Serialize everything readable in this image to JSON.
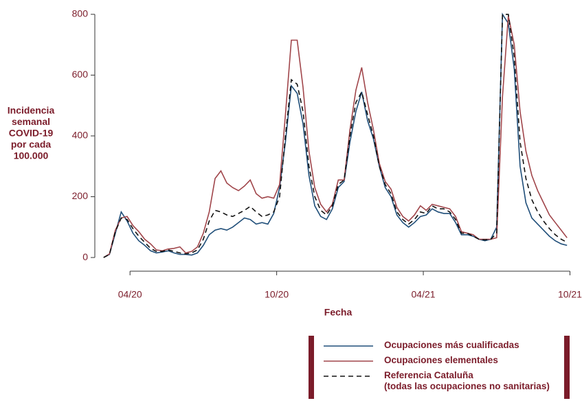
{
  "chart_data": {
    "type": "line",
    "ylabel": [
      "Incidencia",
      "semanal",
      "COVID-19",
      "por cada",
      "100.000"
    ],
    "xlabel": "Fecha",
    "x": [
      2020.16,
      2020.18,
      2020.2,
      2020.22,
      2020.24,
      2020.26,
      2020.28,
      2020.3,
      2020.32,
      2020.34,
      2020.36,
      2020.38,
      2020.4,
      2020.42,
      2020.44,
      2020.46,
      2020.48,
      2020.5,
      2020.52,
      2020.54,
      2020.56,
      2020.58,
      2020.6,
      2020.62,
      2020.64,
      2020.66,
      2020.68,
      2020.7,
      2020.72,
      2020.74,
      2020.76,
      2020.78,
      2020.8,
      2020.82,
      2020.84,
      2020.86,
      2020.88,
      2020.9,
      2020.92,
      2020.94,
      2020.96,
      2020.98,
      2021.0,
      2021.02,
      2021.04,
      2021.06,
      2021.08,
      2021.1,
      2021.12,
      2021.14,
      2021.16,
      2021.18,
      2021.2,
      2021.22,
      2021.24,
      2021.26,
      2021.28,
      2021.3,
      2021.32,
      2021.34,
      2021.36,
      2021.38,
      2021.4,
      2021.42,
      2021.44,
      2021.46,
      2021.48,
      2021.5,
      2021.52,
      2021.54,
      2021.56,
      2021.58,
      2021.6,
      2021.62,
      2021.64,
      2021.66,
      2021.68,
      2021.7,
      2021.72,
      2021.74
    ],
    "series": [
      {
        "name": "Ocupaciones más cualificadas",
        "color": "#1f4e79",
        "line_style": "solid",
        "values": [
          0,
          10,
          80,
          150,
          120,
          80,
          55,
          40,
          22,
          15,
          18,
          22,
          15,
          10,
          10,
          8,
          15,
          40,
          75,
          90,
          95,
          90,
          100,
          115,
          130,
          125,
          110,
          115,
          110,
          145,
          230,
          380,
          565,
          540,
          440,
          270,
          170,
          135,
          125,
          160,
          230,
          250,
          380,
          480,
          545,
          450,
          390,
          300,
          230,
          200,
          140,
          115,
          100,
          115,
          135,
          140,
          160,
          150,
          145,
          145,
          115,
          75,
          75,
          70,
          60,
          55,
          60,
          100,
          800,
          770,
          620,
          300,
          180,
          130,
          110,
          90,
          70,
          55,
          45,
          40
        ]
      },
      {
        "name": "Ocupaciones elementales",
        "color": "#a0454a",
        "line_style": "solid",
        "values": [
          0,
          12,
          90,
          130,
          135,
          105,
          85,
          60,
          45,
          25,
          22,
          28,
          30,
          35,
          15,
          20,
          35,
          80,
          150,
          260,
          285,
          245,
          230,
          220,
          235,
          255,
          210,
          195,
          200,
          195,
          240,
          470,
          715,
          715,
          560,
          350,
          230,
          175,
          150,
          175,
          255,
          255,
          420,
          550,
          625,
          510,
          420,
          310,
          250,
          225,
          165,
          135,
          120,
          140,
          170,
          155,
          175,
          170,
          165,
          160,
          135,
          85,
          80,
          75,
          60,
          60,
          60,
          65,
          530,
          795,
          700,
          480,
          350,
          270,
          220,
          180,
          140,
          115,
          90,
          65
        ]
      },
      {
        "name": "Referencia Cataluña\n(todas las ocupaciones no sanitarias)",
        "color": "#111111",
        "line_style": "dashed",
        "values": [
          0,
          10,
          85,
          130,
          125,
          95,
          70,
          50,
          30,
          20,
          20,
          25,
          20,
          15,
          12,
          15,
          25,
          60,
          120,
          155,
          150,
          140,
          135,
          145,
          155,
          168,
          150,
          135,
          140,
          150,
          200,
          400,
          585,
          570,
          480,
          300,
          200,
          155,
          140,
          170,
          240,
          255,
          400,
          510,
          545,
          470,
          400,
          300,
          240,
          210,
          150,
          125,
          110,
          125,
          150,
          145,
          170,
          160,
          160,
          150,
          125,
          80,
          80,
          70,
          60,
          58,
          60,
          80,
          800,
          800,
          660,
          380,
          260,
          190,
          150,
          120,
          95,
          75,
          60,
          50
        ]
      }
    ],
    "xlim": [
      2020.13,
      2021.77
    ],
    "xticks": [
      {
        "value": 2020.25,
        "label": "04/20"
      },
      {
        "value": 2020.75,
        "label": "10/20"
      },
      {
        "value": 2021.25,
        "label": "04/21"
      },
      {
        "value": 2021.75,
        "label": "10/21"
      }
    ],
    "ylim": [
      -45,
      820
    ],
    "yticks": [
      0,
      200,
      400,
      600,
      800
    ]
  }
}
